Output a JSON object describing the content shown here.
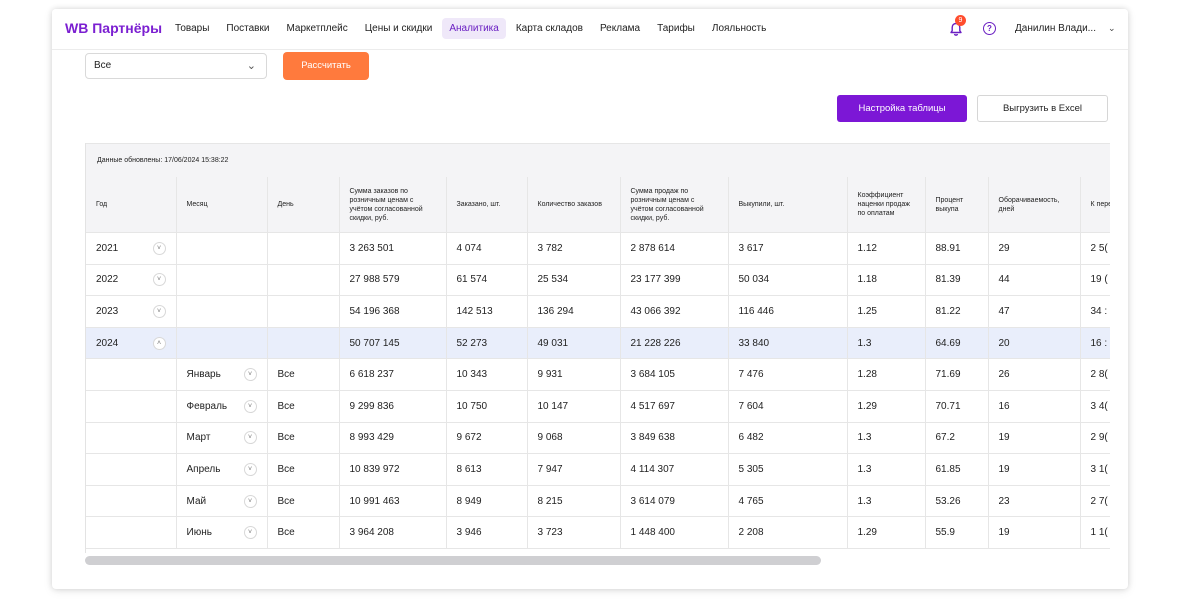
{
  "brand": "WB Партнёры",
  "nav": {
    "items": [
      "Товары",
      "Поставки",
      "Маркетплейс",
      "Цены и скидки",
      "Аналитика",
      "Карта складов",
      "Реклама",
      "Тарифы",
      "Лояльность"
    ],
    "active_index": 4
  },
  "notifications": {
    "count": "9"
  },
  "help_symbol": "?",
  "user": {
    "name": "Данилин Влади..."
  },
  "filter": {
    "selected": "Все"
  },
  "buttons": {
    "calculate": "Рассчитать",
    "table_settings": "Настройка таблицы",
    "export_excel": "Выгрузить в Excel"
  },
  "table": {
    "updated": "Данные обновлены: 17/06/2024 15:38:22",
    "headers": [
      "Год",
      "Месяц",
      "День",
      "Сумма заказов по розничным ценам с учётом согласованной скидки, руб.",
      "Заказано, шт.",
      "Количество заказов",
      "Сумма продаж по розничным ценам с учётом согласованной скидки, руб.",
      "Выкупили, шт.",
      "Коэффициент наценки продаж по оплатам",
      "Процент выкупа",
      "Оборачиваемость, дней",
      "К пере за то"
    ],
    "rows": [
      {
        "year": "2021",
        "month": "",
        "day": "",
        "expand": "year-collapsed",
        "cells": [
          "3 263 501",
          "4 074",
          "3 782",
          "2 878 614",
          "3 617",
          "1.12",
          "88.91",
          "29",
          "2 5("
        ]
      },
      {
        "year": "2022",
        "month": "",
        "day": "",
        "expand": "year-collapsed",
        "cells": [
          "27 988 579",
          "61 574",
          "25 534",
          "23 177 399",
          "50 034",
          "1.18",
          "81.39",
          "44",
          "19 ("
        ]
      },
      {
        "year": "2023",
        "month": "",
        "day": "",
        "expand": "year-collapsed",
        "cells": [
          "54 196 368",
          "142 513",
          "136 294",
          "43 066 392",
          "116 446",
          "1.25",
          "81.22",
          "47",
          "34 :"
        ]
      },
      {
        "year": "2024",
        "month": "",
        "day": "",
        "expand": "year-expanded",
        "cells": [
          "50 707 145",
          "52 273",
          "49 031",
          "21 228 226",
          "33 840",
          "1.3",
          "64.69",
          "20",
          "16 :"
        ]
      },
      {
        "year": "",
        "month": "Январь",
        "day": "Все",
        "expand": "month",
        "cells": [
          "6 618 237",
          "10 343",
          "9 931",
          "3 684 105",
          "7 476",
          "1.28",
          "71.69",
          "26",
          "2 8("
        ]
      },
      {
        "year": "",
        "month": "Февраль",
        "day": "Все",
        "expand": "month",
        "cells": [
          "9 299 836",
          "10 750",
          "10 147",
          "4 517 697",
          "7 604",
          "1.29",
          "70.71",
          "16",
          "3 4("
        ]
      },
      {
        "year": "",
        "month": "Март",
        "day": "Все",
        "expand": "month",
        "cells": [
          "8 993 429",
          "9 672",
          "9 068",
          "3 849 638",
          "6 482",
          "1.3",
          "67.2",
          "19",
          "2 9("
        ]
      },
      {
        "year": "",
        "month": "Апрель",
        "day": "Все",
        "expand": "month",
        "cells": [
          "10 839 972",
          "8 613",
          "7 947",
          "4 114 307",
          "5 305",
          "1.3",
          "61.85",
          "19",
          "3 1("
        ]
      },
      {
        "year": "",
        "month": "Май",
        "day": "Все",
        "expand": "month",
        "cells": [
          "10 991 463",
          "8 949",
          "8 215",
          "3 614 079",
          "4 765",
          "1.3",
          "53.26",
          "23",
          "2 7("
        ]
      },
      {
        "year": "",
        "month": "Июнь",
        "day": "Все",
        "expand": "month",
        "cells": [
          "3 964 208",
          "3 946",
          "3 723",
          "1 448 400",
          "2 208",
          "1.29",
          "55.9",
          "19",
          "1 1("
        ]
      }
    ]
  },
  "colors": {
    "brand_purple": "#7b1fd1",
    "primary_button": "#7c17d6",
    "accent_orange": "#ff7a3d",
    "row_highlight": "#e9eefb"
  }
}
